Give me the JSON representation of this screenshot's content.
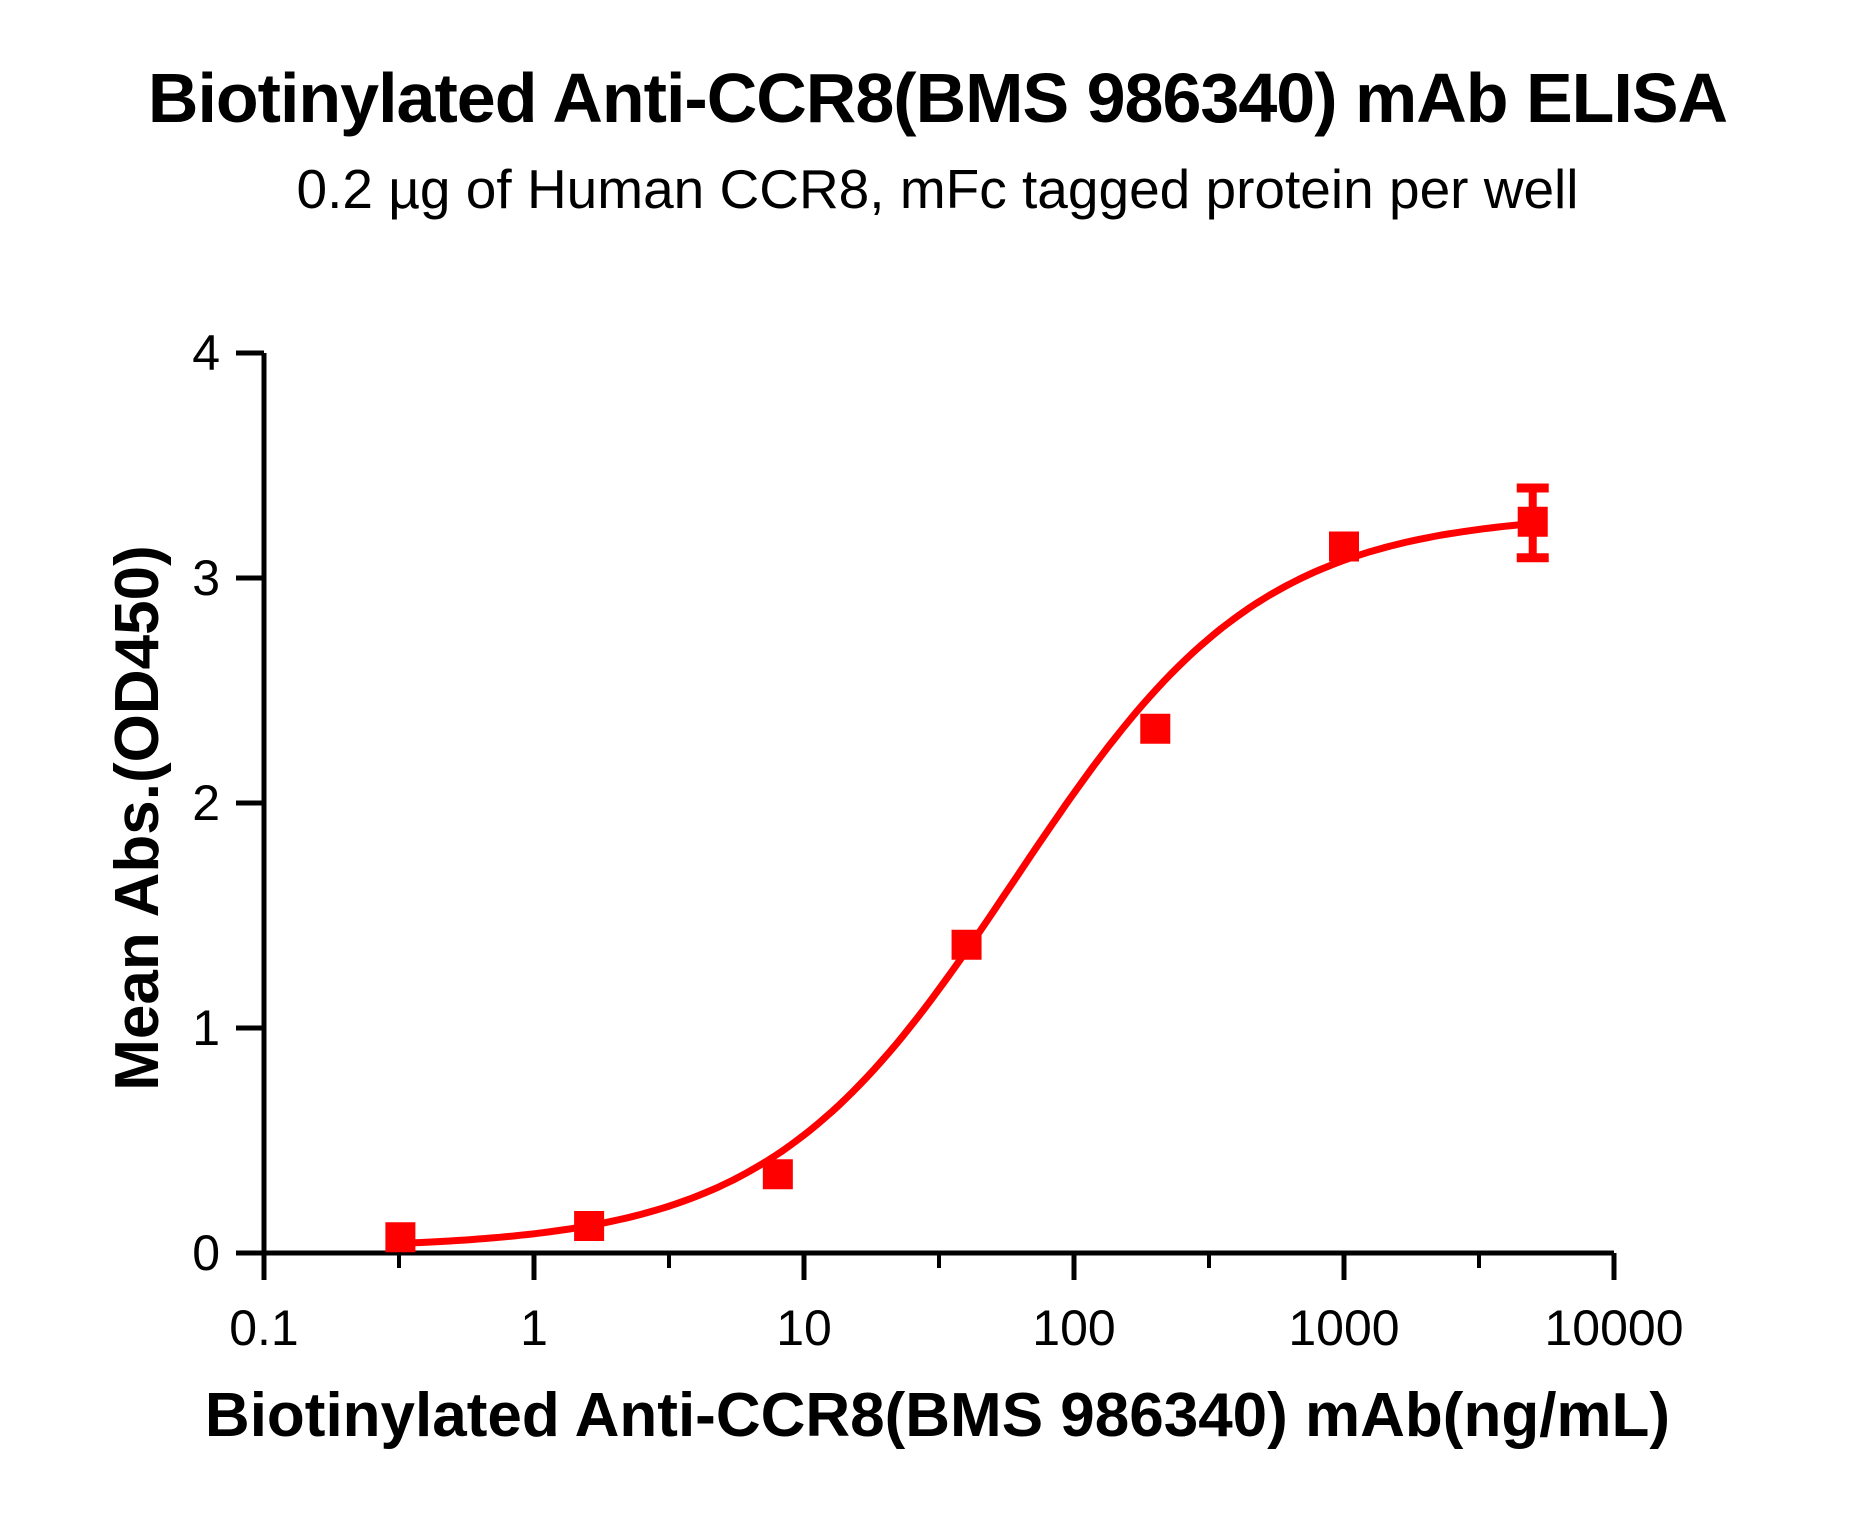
{
  "chart_data": {
    "type": "scatter",
    "title": "Biotinylated Anti-CCR8(BMS 986340) mAb ELISA",
    "subtitle": "0.2 µg of Human CCR8, mFc tagged protein per well",
    "xlabel": "Biotinylated Anti-CCR8(BMS 986340) mAb(ng/mL)",
    "ylabel": "Mean Abs.(OD450)",
    "x_scale": "log",
    "xlim": [
      0.1,
      10000
    ],
    "ylim": [
      0,
      4
    ],
    "x_ticks": [
      0.1,
      1,
      10,
      100,
      1000,
      10000
    ],
    "x_tick_labels": [
      "0.1",
      "1",
      "10",
      "100",
      "1000",
      "10000"
    ],
    "x_minor_ticks": [
      0.3162,
      3.162,
      31.62,
      316.2,
      3162
    ],
    "y_ticks": [
      0,
      1,
      2,
      3,
      4
    ],
    "y_tick_labels": [
      "0",
      "1",
      "2",
      "3",
      "4"
    ],
    "grid": "off",
    "legend": "none",
    "points": [
      {
        "x": 0.32,
        "y": 0.07
      },
      {
        "x": 1.6,
        "y": 0.12
      },
      {
        "x": 8,
        "y": 0.35
      },
      {
        "x": 40,
        "y": 1.37
      },
      {
        "x": 200,
        "y": 2.33
      },
      {
        "x": 1000,
        "y": 3.14
      },
      {
        "x": 5000,
        "y": 3.25,
        "err_high": 0.15,
        "err_low": 0.16
      }
    ],
    "fit_curve": {
      "model": "4PL",
      "bottom": 0.02,
      "top": 3.29,
      "ec50": 60,
      "hill": 0.95,
      "x_start": 0.32,
      "x_end": 5000
    },
    "marker": {
      "shape": "square",
      "size": 30,
      "color": "#ff0000"
    },
    "line_color": "#ff0000",
    "axis_color": "#000000",
    "background_color": "#ffffff"
  }
}
